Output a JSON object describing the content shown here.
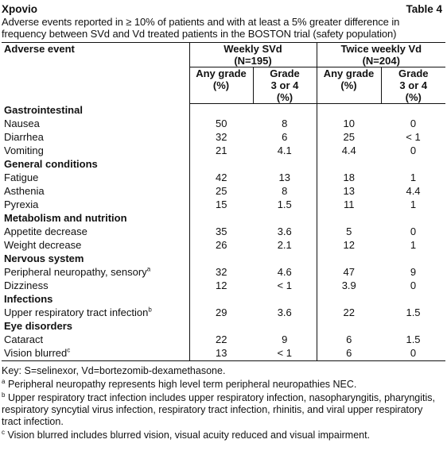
{
  "header": {
    "title": "Xpovio",
    "table_label": "Table 4",
    "caption": "Adverse events reported in ≥ 10% of patients and with at least a 5% greater difference in frequency between SVd and Vd treated patients in the BOSTON trial (safety population)"
  },
  "table": {
    "columns": {
      "event": "Adverse event",
      "group1": "Weekly SVd",
      "group1_n": "(N=195)",
      "group2": "Twice weekly Vd",
      "group2_n": "(N=204)",
      "sub": [
        [
          "Any grade",
          "(%)"
        ],
        [
          "Grade",
          "3 or 4",
          "(%)"
        ],
        [
          "Any grade",
          "(%)"
        ],
        [
          "Grade",
          "3 or 4",
          "(%)"
        ]
      ]
    },
    "sections": [
      {
        "name": "Gastrointestinal",
        "rows": [
          {
            "event": "Nausea",
            "values": [
              50,
              8,
              10,
              0
            ]
          },
          {
            "event": "Diarrhea",
            "values": [
              32,
              6,
              25,
              "< 1"
            ]
          },
          {
            "event": "Vomiting",
            "values": [
              21,
              4.1,
              4.4,
              0
            ]
          }
        ]
      },
      {
        "name": "General conditions",
        "rows": [
          {
            "event": "Fatigue",
            "values": [
              42,
              13,
              18,
              1
            ]
          },
          {
            "event": "Asthenia",
            "values": [
              25,
              8,
              13,
              4.4
            ]
          },
          {
            "event": "Pyrexia",
            "values": [
              15,
              1.5,
              11,
              1
            ]
          }
        ]
      },
      {
        "name": "Metabolism and nutrition",
        "rows": [
          {
            "event": "Appetite decrease",
            "values": [
              35,
              3.6,
              5,
              0
            ]
          },
          {
            "event": "Weight decrease",
            "values": [
              26,
              2.1,
              12,
              1
            ]
          }
        ]
      },
      {
        "name": "Nervous system",
        "rows": [
          {
            "event": "Peripheral neuropathy, sensory",
            "sup": "a",
            "values": [
              32,
              4.6,
              47,
              9
            ]
          },
          {
            "event": "Dizziness",
            "values": [
              12,
              "< 1",
              3.9,
              0
            ]
          }
        ]
      },
      {
        "name": "Infections",
        "rows": [
          {
            "event": "Upper respiratory tract infection",
            "sup": "b",
            "values": [
              29,
              3.6,
              22,
              1.5
            ]
          }
        ]
      },
      {
        "name": "Eye disorders",
        "rows": [
          {
            "event": "Cataract",
            "values": [
              22,
              9,
              6,
              1.5
            ]
          },
          {
            "event": "Vision blurred",
            "sup": "c",
            "values": [
              13,
              "< 1",
              6,
              0
            ]
          }
        ]
      }
    ]
  },
  "key": "Key: S=selinexor, Vd=bortezomib-dexamethasone.",
  "footnotes": [
    {
      "mark": "a",
      "text": "Peripheral neuropathy represents high level term peripheral neuropathies NEC."
    },
    {
      "mark": "b",
      "text": "Upper respiratory tract infection includes upper respiratory infection, nasopharyngitis, pharyngitis, respiratory syncytial virus infection, respiratory tract infection, rhinitis, and viral upper respiratory tract infection."
    },
    {
      "mark": "c",
      "text": "Vision blurred includes blurred vision, visual acuity reduced and visual impairment."
    }
  ]
}
